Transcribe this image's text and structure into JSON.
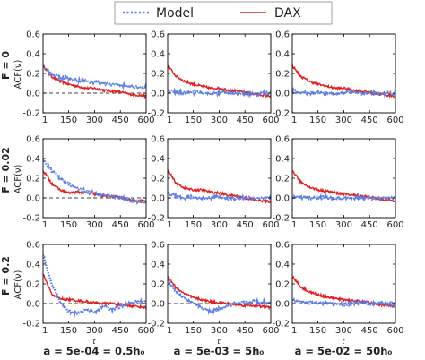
{
  "legend": {
    "entries": [
      {
        "name": "Model",
        "color": "#5b7fe6",
        "style": "dotted"
      },
      {
        "name": "DAX",
        "color": "#e02020",
        "style": "solid"
      }
    ],
    "placement": "top-center"
  },
  "row_labels": [
    "F = 0",
    "F = 0.02",
    "F = 0.2"
  ],
  "ylabel": "ACF(ν)",
  "xlabel": "t",
  "col_labels": [
    "a = 5e-04 = 0.5h₀",
    "a = 5e-03 = 5h₀",
    "a = 5e-02 = 50h₀"
  ],
  "chart_data": {
    "type": "line",
    "layout": "3x3 grid",
    "xlim": [
      1,
      600
    ],
    "ylim": [
      -0.2,
      0.6
    ],
    "x_ticks": [
      "1",
      "150",
      "300",
      "450",
      "600"
    ],
    "y_ticks": [
      "0.6",
      "0.4",
      "0.2",
      "0.0",
      "-0.2"
    ],
    "reference_line": {
      "y": 0.0,
      "style": "dashed",
      "color": "#000000"
    },
    "x": [
      1,
      50,
      100,
      150,
      200,
      250,
      300,
      350,
      400,
      450,
      500,
      550,
      600
    ],
    "series_names": [
      "Model",
      "DAX"
    ],
    "panels": [
      {
        "row": "F = 0",
        "col": "a = 5e-04 = 0.5h₀",
        "Model": [
          0.27,
          0.19,
          0.16,
          0.15,
          0.13,
          0.12,
          0.11,
          0.1,
          0.09,
          0.08,
          0.07,
          0.06,
          0.06
        ],
        "DAX": [
          0.28,
          0.17,
          0.12,
          0.09,
          0.07,
          0.05,
          0.05,
          0.03,
          0.02,
          0.01,
          -0.01,
          -0.02,
          -0.03
        ]
      },
      {
        "row": "F = 0",
        "col": "a = 5e-03 = 5h₀",
        "Model": [
          0.02,
          0.01,
          0.0,
          0.01,
          0.0,
          -0.01,
          0.0,
          0.01,
          0.0,
          0.0,
          -0.01,
          0.0,
          0.0
        ],
        "DAX": [
          0.28,
          0.17,
          0.12,
          0.09,
          0.07,
          0.05,
          0.05,
          0.03,
          0.02,
          0.01,
          -0.01,
          -0.02,
          -0.03
        ]
      },
      {
        "row": "F = 0",
        "col": "a = 5e-02 = 50h₀",
        "Model": [
          0.02,
          0.01,
          0.0,
          0.01,
          0.0,
          -0.01,
          0.0,
          0.01,
          0.0,
          0.0,
          -0.01,
          0.0,
          0.0
        ],
        "DAX": [
          0.28,
          0.17,
          0.12,
          0.09,
          0.07,
          0.05,
          0.05,
          0.03,
          0.02,
          0.01,
          -0.01,
          -0.02,
          -0.03
        ]
      },
      {
        "row": "F = 0.02",
        "col": "a = 5e-04 = 0.5h₀",
        "Model": [
          0.38,
          0.28,
          0.2,
          0.14,
          0.1,
          0.07,
          0.05,
          0.03,
          0.01,
          0.0,
          -0.02,
          -0.04,
          -0.05
        ],
        "DAX": [
          0.28,
          0.15,
          0.08,
          0.05,
          0.06,
          0.05,
          0.04,
          0.02,
          0.02,
          0.0,
          -0.02,
          -0.03,
          -0.03
        ]
      },
      {
        "row": "F = 0.02",
        "col": "a = 5e-03 = 5h₀",
        "Model": [
          0.05,
          0.02,
          0.0,
          0.01,
          -0.01,
          0.0,
          0.01,
          -0.01,
          0.0,
          0.0,
          -0.01,
          0.0,
          0.0
        ],
        "DAX": [
          0.28,
          0.15,
          0.1,
          0.08,
          0.08,
          0.06,
          0.05,
          0.03,
          0.02,
          0.0,
          -0.02,
          -0.03,
          -0.04
        ]
      },
      {
        "row": "F = 0.02",
        "col": "a = 5e-02 = 50h₀",
        "Model": [
          0.01,
          0.01,
          0.0,
          0.0,
          0.01,
          -0.01,
          0.0,
          0.0,
          0.01,
          0.0,
          -0.01,
          0.0,
          0.0
        ],
        "DAX": [
          0.28,
          0.16,
          0.11,
          0.08,
          0.07,
          0.05,
          0.04,
          0.03,
          0.02,
          0.01,
          -0.01,
          -0.02,
          -0.03
        ]
      },
      {
        "row": "F = 0.2",
        "col": "a = 5e-04 = 0.5h₀",
        "Model": [
          0.5,
          0.2,
          0.02,
          -0.08,
          -0.1,
          -0.06,
          -0.09,
          -0.02,
          -0.06,
          -0.03,
          0.0,
          0.02,
          0.03
        ],
        "DAX": [
          0.3,
          0.1,
          0.05,
          0.04,
          0.03,
          0.02,
          0.01,
          0.0,
          0.0,
          -0.01,
          -0.02,
          -0.03,
          -0.04
        ]
      },
      {
        "row": "F = 0.2",
        "col": "a = 5e-03 = 5h₀",
        "Model": [
          0.25,
          0.12,
          0.05,
          0.0,
          -0.04,
          -0.08,
          -0.06,
          -0.02,
          0.0,
          0.01,
          0.02,
          0.02,
          0.01
        ],
        "DAX": [
          0.28,
          0.16,
          0.1,
          0.06,
          0.04,
          0.02,
          0.01,
          0.0,
          -0.01,
          -0.02,
          -0.02,
          -0.03,
          -0.04
        ]
      },
      {
        "row": "F = 0.2",
        "col": "a = 5e-02 = 50h₀",
        "Model": [
          0.03,
          0.02,
          0.01,
          0.0,
          0.01,
          0.0,
          -0.01,
          0.0,
          0.01,
          0.0,
          0.0,
          -0.01,
          0.0
        ],
        "DAX": [
          0.28,
          0.17,
          0.12,
          0.09,
          0.07,
          0.05,
          0.04,
          0.03,
          0.02,
          0.01,
          -0.01,
          -0.02,
          -0.03
        ]
      }
    ]
  }
}
